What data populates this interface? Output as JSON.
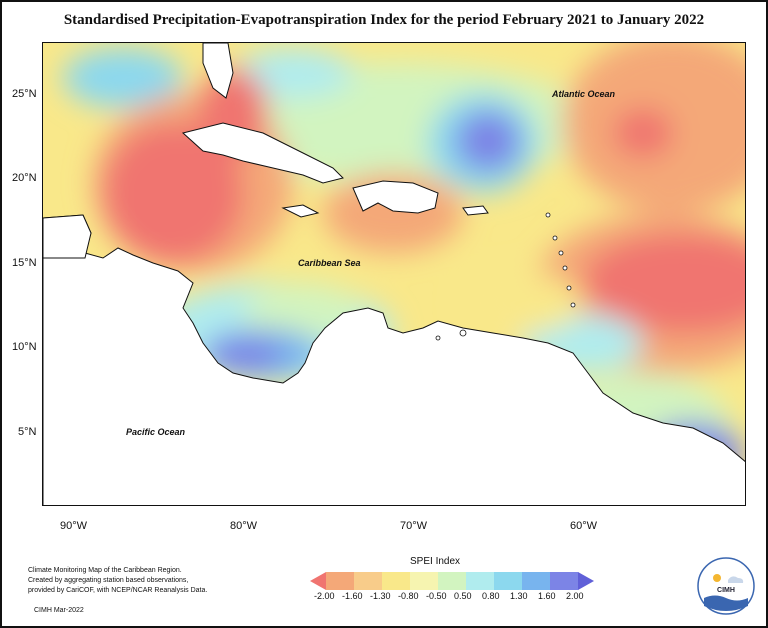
{
  "title": "Standardised Precipitation-Evapotranspiration Index for the period February 2021 to January 2022",
  "lat_labels": [
    "25°N",
    "20°N",
    "15°N",
    "10°N",
    "5°N"
  ],
  "lon_labels": [
    "90°W",
    "80°W",
    "70°W",
    "60°W"
  ],
  "places": {
    "atlantic": "Atlantic Ocean",
    "caribbean": "Caribbean Sea",
    "pacific": "Pacific Ocean"
  },
  "notes": {
    "line1": "Climate Monitoring Map of the Caribbean Region.",
    "line2": "Created by aggregating station based observations,",
    "line3": "provided by CariCOF, with NCEP/NCAR Reanalysis Data.",
    "credit": "CIMH Mar-2022"
  },
  "legend": {
    "title": "SPEI Index",
    "ticks": [
      "-2.00",
      "-1.60",
      "-1.30",
      "-0.80",
      "-0.50",
      "0.50",
      "0.80",
      "1.30",
      "1.60",
      "2.00"
    ],
    "colors": [
      "#f07470",
      "#f4a878",
      "#f8cc8a",
      "#f9e88a",
      "#f6f4b0",
      "#d2f4c0",
      "#b0ecee",
      "#8cd8ee",
      "#78b4ee",
      "#7c84e6",
      "#6060d8"
    ]
  },
  "logo_text": "CIMH",
  "colors": {
    "dry_strong": "#f07470",
    "dry": "#f4a878",
    "neutral": "#f9e88a",
    "wet": "#b0ecee",
    "wet_strong": "#7c84e6",
    "land": "#ffffff"
  }
}
